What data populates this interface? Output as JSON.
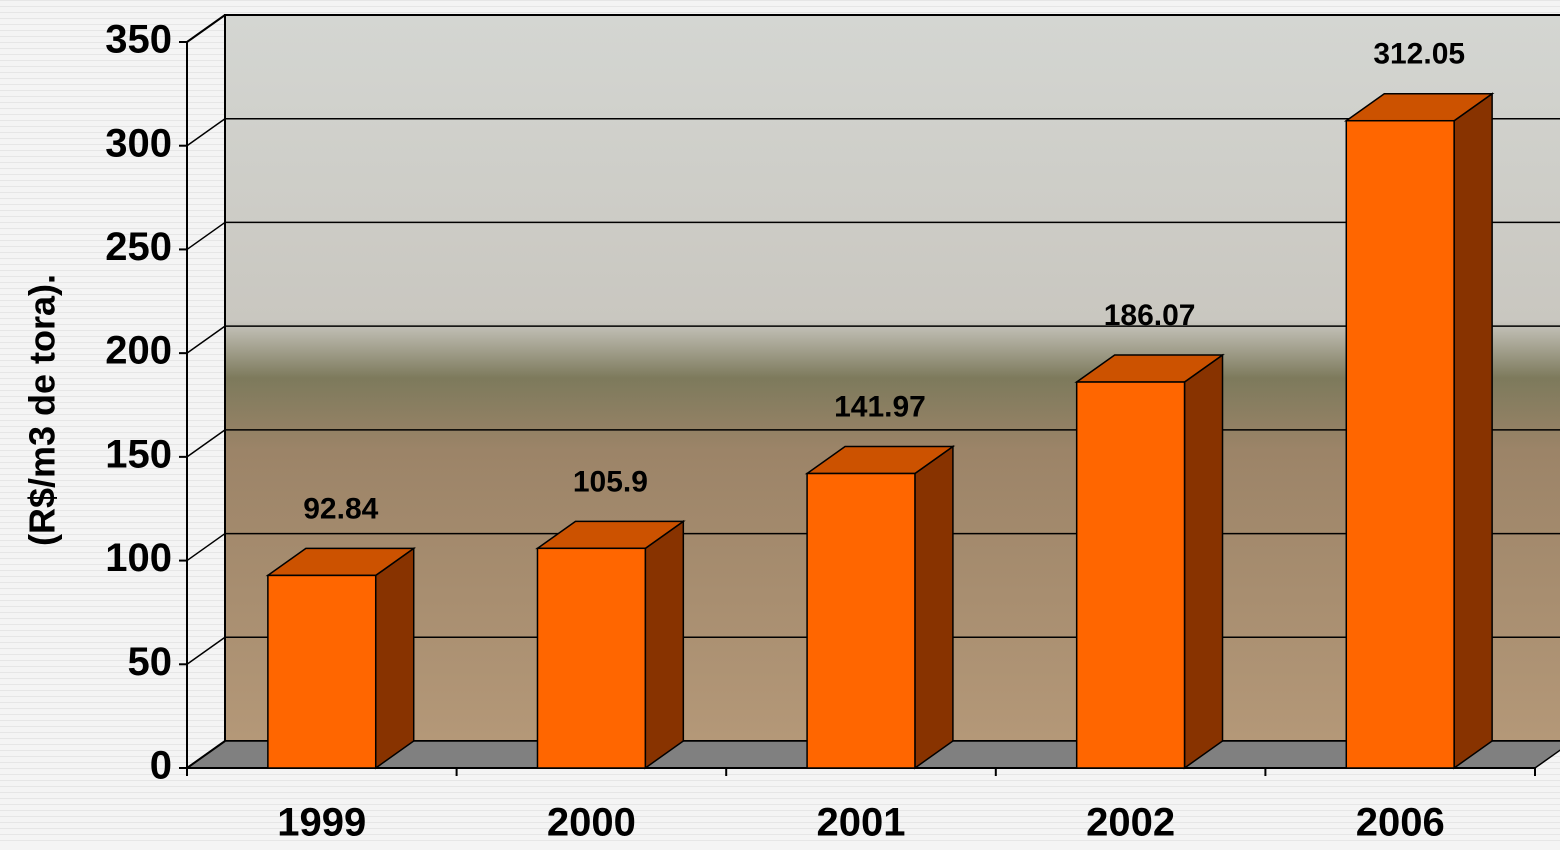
{
  "chart_data": {
    "type": "bar",
    "y_label": "(R$/m3 de tora).",
    "categories": [
      "1999",
      "2000",
      "2001",
      "2002",
      "2006"
    ],
    "values": [
      92.84,
      105.9,
      141.97,
      186.07,
      312.05
    ],
    "color": "#ff6600",
    "ylim": [
      0,
      350
    ],
    "yticks": [
      0,
      50,
      100,
      150,
      200,
      250,
      300,
      350
    ],
    "grid": true
  }
}
